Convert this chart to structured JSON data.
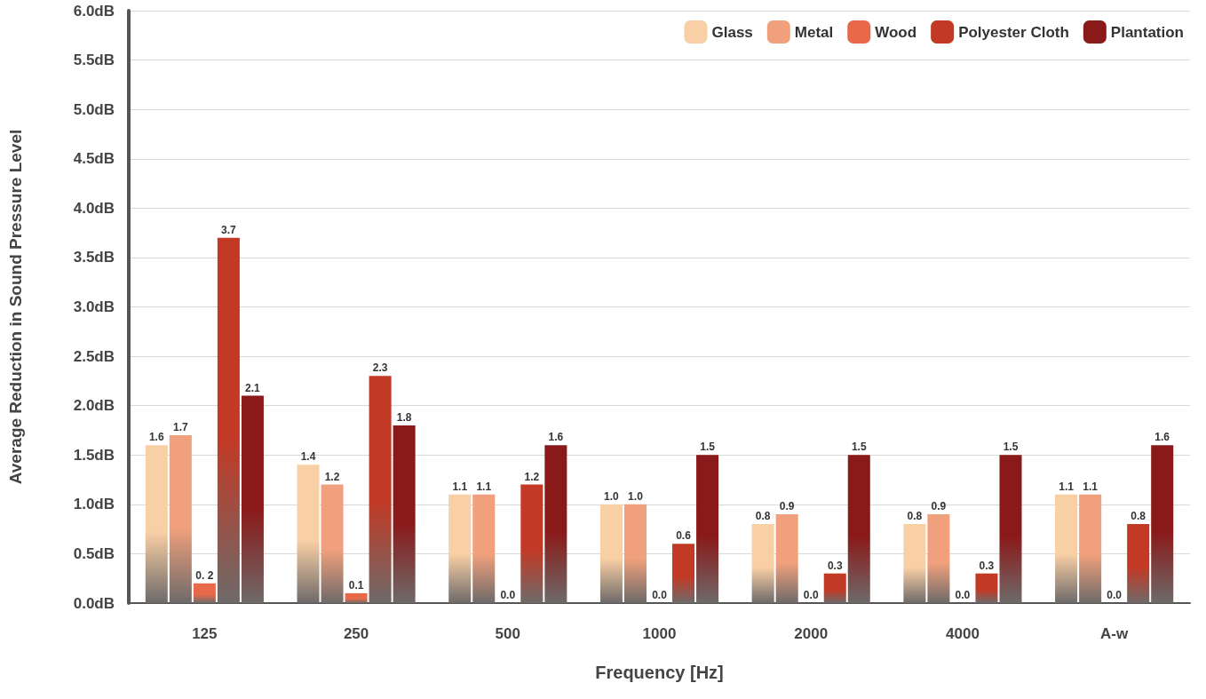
{
  "chart_data": {
    "type": "bar",
    "xlabel": "Frequency [Hz]",
    "ylabel": "Average Reduction in Sound Pressure Level",
    "categories": [
      "125",
      "250",
      "500",
      "1000",
      "2000",
      "4000",
      "A-w"
    ],
    "series": [
      {
        "name": "Glass",
        "color": "#f9cfa5",
        "values": [
          1.6,
          1.4,
          1.1,
          1.0,
          0.8,
          0.8,
          1.1
        ],
        "value_labels": [
          "1.6",
          "1.4",
          "1.1",
          "1.0",
          "0.8",
          "0.8",
          "1.1"
        ]
      },
      {
        "name": "Metal",
        "color": "#f0a07c",
        "values": [
          1.7,
          1.2,
          1.1,
          1.0,
          0.9,
          0.9,
          1.1
        ],
        "value_labels": [
          "1.7",
          "1.2",
          "1.1",
          "1.0",
          "0.9",
          "0.9",
          "1.1"
        ]
      },
      {
        "name": "Wood",
        "color": "#e8694a",
        "values": [
          0.2,
          0.1,
          0.0,
          0.0,
          0.0,
          0.0,
          0.0
        ],
        "value_labels": [
          "0. 2",
          "0.1",
          "0.0",
          "0.0",
          "0.0",
          "0.0",
          "0.0"
        ]
      },
      {
        "name": "Polyester Cloth",
        "color": "#c23a26",
        "values": [
          3.7,
          2.3,
          1.2,
          0.6,
          0.3,
          0.3,
          0.8
        ],
        "value_labels": [
          "3.7",
          "2.3",
          "1.2",
          "0.6",
          "0.3",
          "0.3",
          "0.8"
        ]
      },
      {
        "name": "Plantation",
        "color": "#8a1a1a",
        "values": [
          2.1,
          1.8,
          1.6,
          1.5,
          1.5,
          1.5,
          1.6
        ],
        "value_labels": [
          "2.1",
          "1.8",
          "1.6",
          "1.5",
          "1.5",
          "1.5",
          "1.6"
        ]
      }
    ],
    "ylim": [
      0,
      6
    ],
    "yticks": [
      {
        "value": 0,
        "label": "0.0dB"
      },
      {
        "value": 0.5,
        "label": "0.5dB"
      },
      {
        "value": 1,
        "label": "1.0dB"
      },
      {
        "value": 1.5,
        "label": "1.5dB"
      },
      {
        "value": 2,
        "label": "2.0dB"
      },
      {
        "value": 2.5,
        "label": "2.5dB"
      },
      {
        "value": 3,
        "label": "3.0dB"
      },
      {
        "value": 3.5,
        "label": "3.5dB"
      },
      {
        "value": 4,
        "label": "4.0dB"
      },
      {
        "value": 4.5,
        "label": "4.5dB"
      },
      {
        "value": 5,
        "label": "5.0dB"
      },
      {
        "value": 5.5,
        "label": "5.5dB"
      },
      {
        "value": 6,
        "label": "6.0dB"
      }
    ],
    "grid": "y",
    "legend": "top right"
  }
}
